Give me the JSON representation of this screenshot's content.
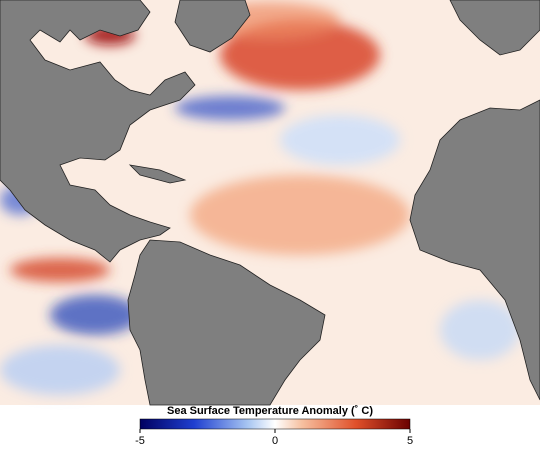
{
  "map": {
    "legend": {
      "title": "Sea Surface Temperature Anomaly (˚ C)",
      "range": [
        -5,
        5
      ],
      "ticks": [
        -5,
        0,
        5
      ]
    }
  }
}
